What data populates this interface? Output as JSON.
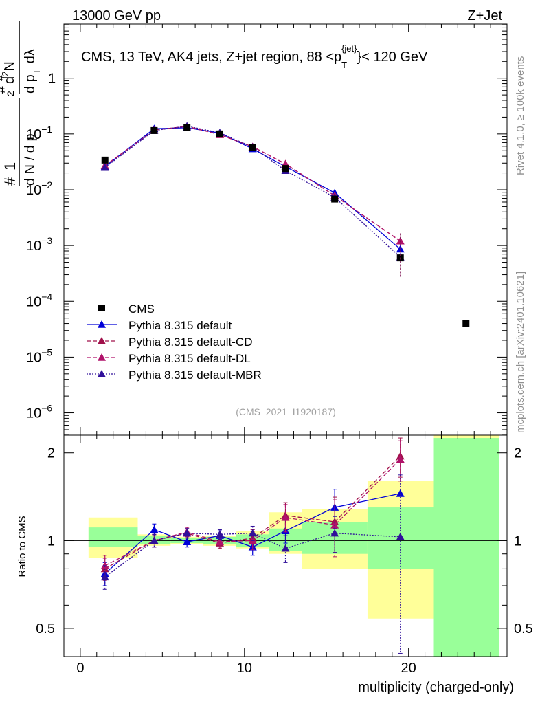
{
  "header": {
    "left": "13000 GeV pp",
    "right": "Z+Jet"
  },
  "side": {
    "rivet": "Rivet 4.1.0, ≥ 100k events",
    "mcplots": "mcplots.cern.ch [arXiv:2401.10621]"
  },
  "chart_data": {
    "type": "line",
    "title": "CMS, 13 TeV, AK4 jets, Z+jet region, 88 <p_T^{jet}< 120 GeV",
    "title_parts": {
      "main": "CMS, 13 TeV, AK4 jets, Z+jet region, 88 <p",
      "sub": "T",
      "sup": "{jet}",
      "end": "}< 120 GeV"
    },
    "analysis_tag": "(CMS_2021_I1920187)",
    "xlabel": "multiplicity (charged-only)",
    "ylabel_parts": {
      "a": "1",
      "b": "d N / d p",
      "c": "T",
      "d": "#",
      "e": "d",
      "f": "N",
      "g": "2",
      "h": "d p",
      "i": "T",
      "j": "dλ",
      "k": "#",
      "l": "#"
    },
    "ratio_ylabel": "Ratio to CMS",
    "xlim": [
      -1,
      26
    ],
    "ylim_main_log": [
      -6.4,
      0.97
    ],
    "ylim_ratio": [
      0.4,
      2.3
    ],
    "x_ticks": [
      0,
      10,
      20
    ],
    "main_y_ticks": [
      {
        "exp": 0,
        "label": "1",
        "sup": ""
      },
      {
        "exp": -1,
        "label": "10",
        "sup": "−1"
      },
      {
        "exp": -2,
        "label": "10",
        "sup": "−2"
      },
      {
        "exp": -3,
        "label": "10",
        "sup": "−3"
      },
      {
        "exp": -4,
        "label": "10",
        "sup": "−4"
      },
      {
        "exp": -5,
        "label": "10",
        "sup": "−5"
      },
      {
        "exp": -6,
        "label": "10",
        "sup": "−6"
      }
    ],
    "ratio_y_ticks": [
      {
        "value": 0.5,
        "label": "0.5"
      },
      {
        "value": 1,
        "label": "1"
      },
      {
        "value": 2,
        "label": "2"
      }
    ],
    "bins": [
      [
        0.5,
        3.5
      ],
      [
        3.5,
        5.5
      ],
      [
        5.5,
        7.5
      ],
      [
        7.5,
        9.5
      ],
      [
        9.5,
        11.5
      ],
      [
        11.5,
        13.5
      ],
      [
        13.5,
        17.5
      ],
      [
        17.5,
        21.5
      ],
      [
        21.5,
        25.5
      ]
    ],
    "data": {
      "name": "CMS",
      "x": [
        1.5,
        4.5,
        6.5,
        8.5,
        10.5,
        12.5,
        15.5,
        19.5,
        23.5
      ],
      "y": [
        0.034,
        0.115,
        0.13,
        0.1,
        0.057,
        0.024,
        0.0068,
        0.0006,
        4e-05
      ]
    },
    "band_stat": [
      [
        0.95,
        1.11
      ],
      [
        0.97,
        1.04
      ],
      [
        0.98,
        1.02
      ],
      [
        0.97,
        1.03
      ],
      [
        0.95,
        1.05
      ],
      [
        0.92,
        1.1
      ],
      [
        0.9,
        1.16
      ],
      [
        0.8,
        1.3
      ],
      [
        0.37,
        2.25
      ]
    ],
    "band_total": [
      [
        0.87,
        1.2
      ],
      [
        0.96,
        1.05
      ],
      [
        0.97,
        1.03
      ],
      [
        0.96,
        1.04
      ],
      [
        0.94,
        1.08
      ],
      [
        0.9,
        1.25
      ],
      [
        0.8,
        1.28
      ],
      [
        0.54,
        1.6
      ],
      [
        0.37,
        2.3
      ]
    ],
    "series": [
      {
        "name": "Pythia 8.315 default",
        "color": "#0000d8",
        "dash": "",
        "x": [
          1.5,
          4.5,
          6.5,
          8.5,
          10.5,
          12.5,
          15.5,
          19.5
        ],
        "y": [
          0.026,
          0.124,
          0.129,
          0.104,
          0.054,
          0.026,
          0.0088,
          0.00086
        ],
        "ratio": [
          0.77,
          1.09,
          0.99,
          1.04,
          0.95,
          1.08,
          1.3,
          1.45
        ],
        "ratio_err": [
          0.07,
          0.05,
          0.04,
          0.04,
          0.06,
          0.1,
          0.2,
          0.0
        ]
      },
      {
        "name": "Pythia 8.315 default-CD",
        "color": "#a0104a",
        "dash": "6,3",
        "x": [
          1.5,
          4.5,
          6.5,
          8.5,
          10.5,
          12.5,
          15.5,
          19.5
        ],
        "y": [
          0.027,
          0.117,
          0.137,
          0.097,
          0.059,
          0.029,
          0.0078,
          0.0012
        ],
        "ratio": [
          0.8,
          1.0,
          1.06,
          0.98,
          1.02,
          1.22,
          1.16,
          1.95
        ],
        "ratio_err": [
          0.07,
          0.05,
          0.04,
          0.04,
          0.07,
          0.13,
          0.25,
          0.3
        ]
      },
      {
        "name": "Pythia 8.315 default-DL",
        "color": "#b0126a",
        "dash": "6,3",
        "x": [
          1.5,
          4.5,
          6.5,
          8.5,
          10.5,
          12.5,
          15.5,
          19.5
        ],
        "y": [
          0.027,
          0.117,
          0.137,
          0.097,
          0.059,
          0.029,
          0.0078,
          0.0012
        ],
        "ratio": [
          0.82,
          1.0,
          1.07,
          0.99,
          1.0,
          1.2,
          1.13,
          1.9
        ],
        "ratio_err": [
          0.07,
          0.05,
          0.04,
          0.04,
          0.07,
          0.13,
          0.25,
          0.3
        ]
      },
      {
        "name": "Pythia 8.315 default-MBR",
        "color": "#30109a",
        "dash": "2,2",
        "x": [
          1.5,
          4.5,
          6.5,
          8.5,
          10.5,
          12.5,
          15.5,
          19.5
        ],
        "y": [
          0.025,
          0.115,
          0.138,
          0.105,
          0.058,
          0.022,
          0.0073,
          0.00062
        ],
        "ratio": [
          0.75,
          1.0,
          1.06,
          1.05,
          1.06,
          0.94,
          1.06,
          1.03
        ],
        "ratio_err": [
          0.07,
          0.05,
          0.04,
          0.04,
          0.06,
          0.1,
          0.15,
          0.65
        ]
      }
    ]
  }
}
